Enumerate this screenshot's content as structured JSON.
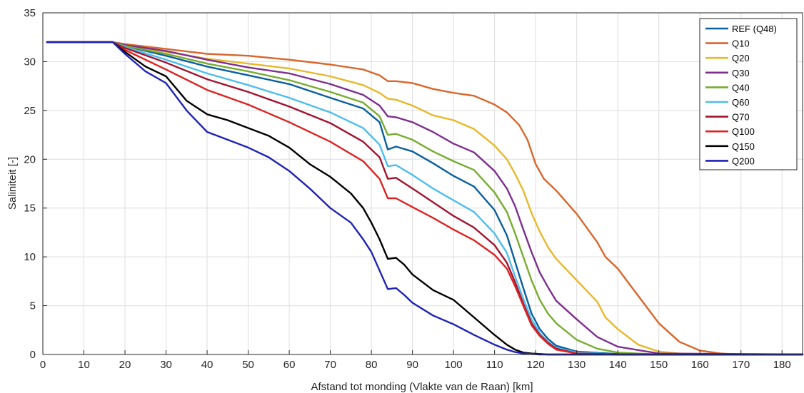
{
  "chart_data": {
    "type": "line",
    "title": "",
    "xlabel": "Afstand tot monding (Vlakte van de Raan) [km]",
    "ylabel": "Saliniteit [-]",
    "xlim": [
      0,
      185
    ],
    "ylim": [
      0,
      35
    ],
    "xticks": [
      0,
      10,
      20,
      30,
      40,
      50,
      60,
      70,
      80,
      90,
      100,
      110,
      120,
      130,
      140,
      150,
      160,
      170,
      180
    ],
    "yticks": [
      0,
      5,
      10,
      15,
      20,
      25,
      30,
      35
    ],
    "grid": true,
    "legend_position": "top-right",
    "series": [
      {
        "name": "REF (Q48)",
        "color": "#0a5f9e",
        "x": [
          1,
          17,
          20,
          30,
          40,
          50,
          60,
          70,
          78,
          82,
          84,
          86,
          90,
          95,
          100,
          105,
          110,
          113,
          115,
          117,
          119,
          121,
          123,
          125,
          130,
          140,
          150,
          185
        ],
        "y": [
          32,
          32,
          31.6,
          30.6,
          29.5,
          28.6,
          27.7,
          26.3,
          25.2,
          23.8,
          21.0,
          21.3,
          20.8,
          19.6,
          18.3,
          17.2,
          14.8,
          12.2,
          9.5,
          6.8,
          4.2,
          2.6,
          1.6,
          0.9,
          0.3,
          0.05,
          0,
          0
        ]
      },
      {
        "name": "Q10",
        "color": "#d9662b",
        "x": [
          1,
          17,
          20,
          30,
          40,
          50,
          60,
          70,
          78,
          82,
          84,
          86,
          90,
          95,
          100,
          105,
          110,
          113,
          116,
          118,
          120,
          122,
          125,
          130,
          135,
          137,
          140,
          145,
          150,
          155,
          160,
          165,
          170,
          185
        ],
        "y": [
          32,
          32,
          31.8,
          31.3,
          30.8,
          30.6,
          30.2,
          29.7,
          29.2,
          28.6,
          28.0,
          28.0,
          27.8,
          27.2,
          26.8,
          26.5,
          25.6,
          24.8,
          23.5,
          22.0,
          19.5,
          18.0,
          16.8,
          14.4,
          11.5,
          10.0,
          8.8,
          6.0,
          3.2,
          1.3,
          0.4,
          0.1,
          0,
          0
        ]
      },
      {
        "name": "Q20",
        "color": "#e8b82a",
        "x": [
          1,
          17,
          20,
          30,
          40,
          50,
          60,
          70,
          78,
          82,
          84,
          86,
          90,
          95,
          100,
          105,
          110,
          113,
          115,
          117,
          119,
          121,
          123,
          125,
          130,
          135,
          137,
          140,
          145,
          150,
          155,
          160,
          185
        ],
        "y": [
          32,
          32,
          31.7,
          31.0,
          30.3,
          29.8,
          29.3,
          28.5,
          27.6,
          26.8,
          26.2,
          26.1,
          25.5,
          24.5,
          24.0,
          23.1,
          21.4,
          20.0,
          18.5,
          16.8,
          14.5,
          12.6,
          11.0,
          9.8,
          7.6,
          5.4,
          3.8,
          2.6,
          1.0,
          0.3,
          0.1,
          0,
          0
        ]
      },
      {
        "name": "Q30",
        "color": "#7e2f8e",
        "x": [
          1,
          17,
          20,
          30,
          40,
          50,
          60,
          70,
          78,
          82,
          84,
          86,
          90,
          95,
          100,
          105,
          110,
          113,
          115,
          117,
          119,
          121,
          123,
          125,
          130,
          135,
          140,
          150,
          185
        ],
        "y": [
          32,
          32,
          31.7,
          31.1,
          30.2,
          29.4,
          28.8,
          27.7,
          26.6,
          25.5,
          24.4,
          24.3,
          23.8,
          22.8,
          21.6,
          20.7,
          18.8,
          17.0,
          15.2,
          12.8,
          10.5,
          8.4,
          6.9,
          5.5,
          3.6,
          1.8,
          0.8,
          0.1,
          0
        ]
      },
      {
        "name": "Q40",
        "color": "#77ac30",
        "x": [
          1,
          17,
          20,
          30,
          40,
          50,
          60,
          70,
          78,
          82,
          84,
          86,
          90,
          95,
          100,
          105,
          110,
          113,
          115,
          117,
          119,
          121,
          123,
          125,
          130,
          135,
          140,
          150,
          185
        ],
        "y": [
          32,
          32,
          31.6,
          30.8,
          29.8,
          29.0,
          28.1,
          26.9,
          25.8,
          24.4,
          22.5,
          22.6,
          22.0,
          20.8,
          19.8,
          18.9,
          16.6,
          14.6,
          12.4,
          10.0,
          7.6,
          5.6,
          4.2,
          3.2,
          1.5,
          0.6,
          0.2,
          0,
          0
        ]
      },
      {
        "name": "Q60",
        "color": "#4dbeee",
        "x": [
          1,
          17,
          20,
          30,
          40,
          50,
          60,
          70,
          78,
          82,
          84,
          86,
          90,
          95,
          100,
          105,
          110,
          113,
          115,
          117,
          119,
          121,
          123,
          125,
          130,
          140,
          150,
          185
        ],
        "y": [
          32,
          32,
          31.5,
          30.2,
          28.8,
          27.6,
          26.3,
          24.8,
          23.2,
          21.5,
          19.3,
          19.4,
          18.4,
          17.0,
          15.8,
          14.6,
          12.4,
          10.4,
          8.0,
          5.7,
          3.6,
          2.2,
          1.3,
          0.7,
          0.2,
          0,
          0,
          0
        ]
      },
      {
        "name": "Q70",
        "color": "#a2142f",
        "x": [
          1,
          17,
          20,
          30,
          40,
          50,
          60,
          70,
          78,
          82,
          84,
          86,
          90,
          95,
          100,
          105,
          110,
          113,
          115,
          117,
          119,
          121,
          123,
          125,
          130,
          140,
          185
        ],
        "y": [
          32,
          32,
          31.4,
          29.9,
          28.2,
          26.9,
          25.4,
          23.7,
          21.8,
          20.2,
          18.0,
          18.1,
          17.0,
          15.6,
          14.2,
          13.0,
          11.2,
          9.4,
          7.4,
          5.2,
          3.2,
          2.0,
          1.2,
          0.6,
          0.1,
          0,
          0
        ]
      },
      {
        "name": "Q100",
        "color": "#dd2323",
        "x": [
          1,
          17,
          20,
          30,
          40,
          50,
          60,
          70,
          78,
          82,
          84,
          86,
          90,
          95,
          100,
          105,
          110,
          113,
          115,
          117,
          119,
          121,
          123,
          125,
          130,
          140,
          185
        ],
        "y": [
          32,
          32,
          31.2,
          29.2,
          27.1,
          25.6,
          23.8,
          21.8,
          19.8,
          18.0,
          16.0,
          16.0,
          15.1,
          14.0,
          12.8,
          11.7,
          10.2,
          8.8,
          7.0,
          5.0,
          3.0,
          1.9,
          1.1,
          0.5,
          0.1,
          0,
          0
        ]
      },
      {
        "name": "Q150",
        "color": "#000000",
        "x": [
          1,
          17,
          20,
          25,
          30,
          35,
          40,
          45,
          50,
          55,
          60,
          65,
          70,
          75,
          78,
          80,
          82,
          84,
          86,
          88,
          90,
          95,
          100,
          105,
          110,
          113,
          115,
          117,
          119,
          121,
          123,
          125,
          130,
          185
        ],
        "y": [
          32,
          32,
          31.0,
          29.5,
          28.5,
          26.0,
          24.6,
          24.0,
          23.2,
          22.4,
          21.2,
          19.5,
          18.2,
          16.5,
          15.0,
          13.5,
          11.8,
          9.8,
          9.9,
          9.2,
          8.2,
          6.6,
          5.6,
          3.8,
          2.0,
          1.0,
          0.5,
          0.2,
          0.1,
          0.05,
          0,
          0,
          0,
          0
        ]
      },
      {
        "name": "Q200",
        "color": "#1f23b4",
        "x": [
          1,
          17,
          20,
          25,
          30,
          35,
          40,
          45,
          50,
          55,
          60,
          65,
          70,
          75,
          78,
          80,
          82,
          84,
          86,
          88,
          90,
          95,
          100,
          105,
          110,
          113,
          115,
          117,
          119,
          121,
          123,
          125,
          185
        ],
        "y": [
          32,
          32,
          30.8,
          29.0,
          27.8,
          25.0,
          22.8,
          22.0,
          21.2,
          20.2,
          18.8,
          17.0,
          15.0,
          13.5,
          11.8,
          10.5,
          8.6,
          6.7,
          6.8,
          6.1,
          5.3,
          4.0,
          3.1,
          2.0,
          1.0,
          0.5,
          0.25,
          0.1,
          0.05,
          0,
          0,
          0,
          0
        ]
      }
    ]
  }
}
